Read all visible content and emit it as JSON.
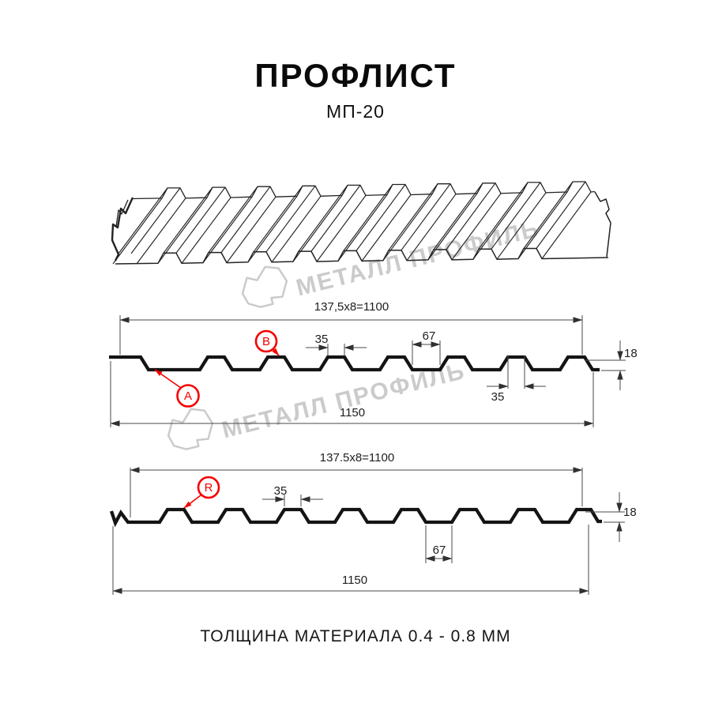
{
  "page": {
    "title": "ПРОФЛИСТ",
    "subtitle": "МП-20",
    "footer_note": "ТОЛЩИНА МАТЕРИАЛА 0.4 - 0.8 ММ"
  },
  "watermark": {
    "brand": "МЕТАЛЛ ПРОФИЛЬ",
    "color": "#cbcbcb"
  },
  "colors": {
    "accent_red": "#f40000",
    "drawing_line": "#141414",
    "dim_line": "#4a4a4a"
  },
  "diagram": {
    "type": "technical-profile-drawing",
    "product": "МП-20",
    "sections": [
      {
        "view": "cross-section side A/B",
        "pitch_label": "137,5x8=1100",
        "crest_width_label": "35",
        "valley_width_label": "67",
        "height_label": "18",
        "crest_width_bottom_label": "35",
        "overall_label": "1150",
        "callouts": [
          "A",
          "B"
        ]
      },
      {
        "view": "cross-section side R",
        "pitch_label": "137.5x8=1100",
        "crest_width_label": "35",
        "valley_width_label": "67",
        "height_label": "18",
        "overall_label": "1150",
        "callouts": [
          "R"
        ]
      }
    ]
  }
}
